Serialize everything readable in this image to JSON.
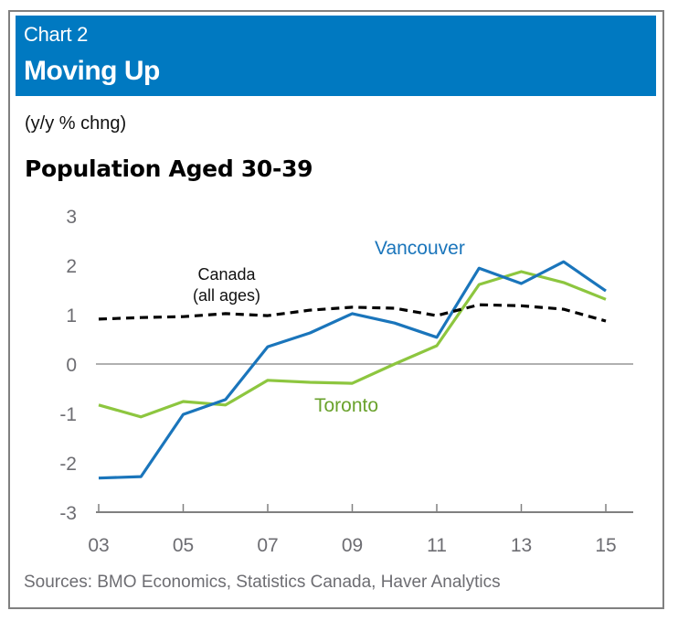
{
  "header": {
    "kicker": "Chart 2",
    "title": "Moving Up"
  },
  "unit_label": "(y/y % chng)",
  "source": "Sources: BMO Economics, Statistics Canada, Haver Analytics",
  "colors": {
    "header_bg": "#0079c1",
    "vancouver": "#1a75bb",
    "toronto": "#8dc63f",
    "toronto_label": "#6aa22c",
    "canada": "#000000",
    "axis": "#808080"
  },
  "chart_data": {
    "type": "line",
    "title": "Population Aged 30-39",
    "xlabel": "",
    "ylabel": "(y/y % chng)",
    "x": [
      2003,
      2004,
      2005,
      2006,
      2007,
      2008,
      2009,
      2010,
      2011,
      2012,
      2013,
      2014,
      2015
    ],
    "xticks": [
      2003,
      2005,
      2007,
      2009,
      2011,
      2013,
      2015
    ],
    "xtick_labels": [
      "03",
      "05",
      "07",
      "09",
      "11",
      "13",
      "15"
    ],
    "ylim": [
      -3,
      3
    ],
    "yticks": [
      3,
      2,
      1,
      0,
      -1,
      -2,
      -3
    ],
    "ytick_labels": [
      "3",
      "2",
      "1",
      "0",
      "-1",
      "-2",
      "-3"
    ],
    "grid": false,
    "zero_line": true,
    "series": [
      {
        "name": "Vancouver",
        "label": "Vancouver",
        "style": "solid",
        "values": [
          -2.31,
          -2.28,
          -1.02,
          -0.72,
          0.35,
          0.63,
          1.02,
          0.83,
          0.54,
          1.94,
          1.63,
          2.07,
          1.48
        ]
      },
      {
        "name": "Toronto",
        "label": "Toronto",
        "style": "solid",
        "values": [
          -0.83,
          -1.07,
          -0.76,
          -0.83,
          -0.33,
          -0.37,
          -0.39,
          0.0,
          0.37,
          1.61,
          1.87,
          1.65,
          1.31
        ]
      },
      {
        "name": "Canada (all ages)",
        "label_line1": "Canada",
        "label_line2": "(all ages)",
        "style": "dashed",
        "values": [
          0.91,
          0.94,
          0.96,
          1.02,
          0.98,
          1.09,
          1.15,
          1.13,
          0.98,
          1.2,
          1.18,
          1.11,
          0.87
        ]
      }
    ]
  }
}
